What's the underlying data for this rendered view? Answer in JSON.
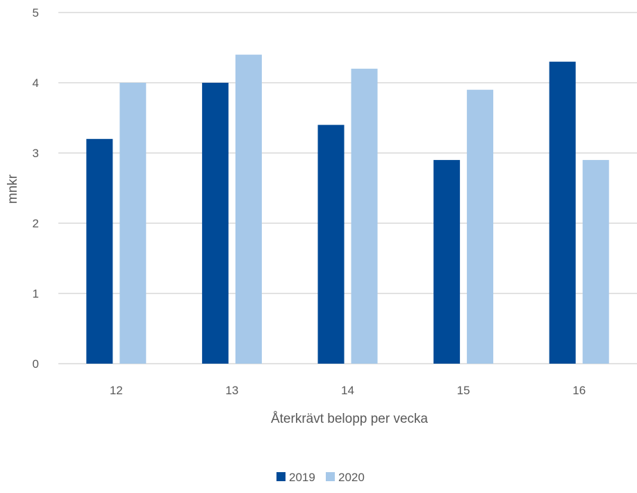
{
  "chart_data": {
    "type": "bar",
    "title": "",
    "xlabel": "Återkrävt belopp per vecka",
    "ylabel": "mnkr",
    "categories": [
      "12",
      "13",
      "14",
      "15",
      "16"
    ],
    "series": [
      {
        "name": "2019",
        "color": "#004A97",
        "values": [
          3.2,
          4.0,
          3.4,
          2.9,
          4.3
        ]
      },
      {
        "name": "2020",
        "color": "#A6C8E9",
        "values": [
          4.0,
          4.4,
          4.2,
          3.9,
          2.9
        ]
      }
    ],
    "ylim": [
      0,
      5
    ],
    "yticks": [
      "0",
      "1",
      "2",
      "3",
      "4",
      "5"
    ],
    "grid": true,
    "legend_position": "bottom"
  }
}
